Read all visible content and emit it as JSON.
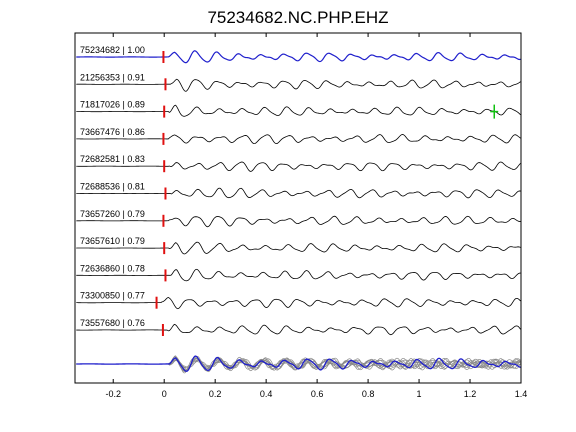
{
  "chart_data": {
    "type": "line",
    "title": "75234682.NC.PHP.EHZ",
    "xlabel": "",
    "ylabel": "",
    "xlim": [
      -0.35,
      1.4
    ],
    "xticks": [
      -0.2,
      0,
      0.2,
      0.4,
      0.6,
      0.8,
      1,
      1.2,
      1.4
    ],
    "xtick_labels": [
      "-0.2",
      "0",
      "0.2",
      "0.4",
      "0.6",
      "0.8",
      "1",
      "1.2",
      "1.4"
    ],
    "grid": false,
    "reference_trace_color": "#1f1fcc",
    "trace_color": "#000000",
    "stack_trace_color": "#8a8a8a",
    "pick_color": "#e01010",
    "secondary_pick_color": "#10c010",
    "traces": [
      {
        "id": "75234682",
        "cc": "1.00",
        "label": "75234682 | 1.00",
        "pick_time": -0.003,
        "reference": true
      },
      {
        "id": "21256353",
        "cc": "0.91",
        "label": "21256353 | 0.91",
        "pick_time": 0.005
      },
      {
        "id": "71817026",
        "cc": "0.89",
        "label": "71817026 | 0.89",
        "pick_time": 0.0,
        "secondary_pick_time": 1.295
      },
      {
        "id": "73667476",
        "cc": "0.86",
        "label": "73667476 | 0.86",
        "pick_time": -0.003
      },
      {
        "id": "72682581",
        "cc": "0.83",
        "label": "72682581 | 0.83",
        "pick_time": 0.0
      },
      {
        "id": "72688536",
        "cc": "0.81",
        "label": "72688536 | 0.81",
        "pick_time": 0.005
      },
      {
        "id": "73657260",
        "cc": "0.79",
        "label": "73657260 | 0.79",
        "pick_time": -0.003
      },
      {
        "id": "73657610",
        "cc": "0.79",
        "label": "73657610 | 0.79",
        "pick_time": 0.0
      },
      {
        "id": "72636860",
        "cc": "0.78",
        "label": "72636860 | 0.78",
        "pick_time": 0.005
      },
      {
        "id": "73300850",
        "cc": "0.77",
        "label": "73300850 | 0.77",
        "pick_time": -0.03
      },
      {
        "id": "73557680",
        "cc": "0.76",
        "label": "73557680 | 0.76",
        "pick_time": -0.005
      }
    ]
  }
}
